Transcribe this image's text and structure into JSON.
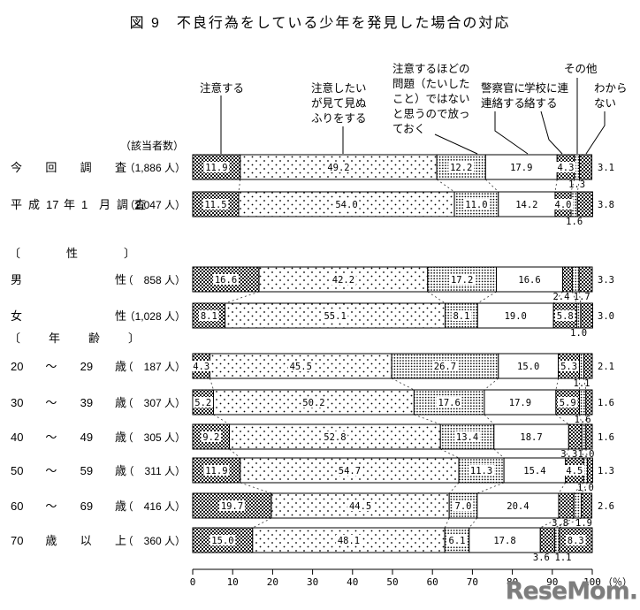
{
  "title": "図 9　不良行為をしている少年を発見した場合の対応",
  "watermark": "ReseMom.",
  "chart_data": {
    "type": "bar",
    "orientation": "horizontal",
    "stacked": true,
    "unit": "%",
    "axis": {
      "min": 0,
      "max": 100,
      "ticks": [
        0,
        10,
        20,
        30,
        40,
        50,
        60,
        70,
        80,
        90,
        100
      ],
      "unit_label": "（％）"
    },
    "respondents_header": "（該当者数）",
    "categories": [
      {
        "name": "注意する",
        "lines": [
          "注意する"
        ],
        "pattern": "checker"
      },
      {
        "name": "注意したいが見て見ぬふりをする",
        "lines": [
          "注意したい",
          "が見て見ぬ",
          "ふりをする"
        ],
        "pattern": "dots-sparse"
      },
      {
        "name": "注意するほどの問題（たいしたこと）ではないと思うので放っておく",
        "lines": [
          "注意するほどの",
          "問題（たいした",
          "こと）ではない",
          "と思うので放っ",
          "ておく"
        ],
        "pattern": "dots-dense"
      },
      {
        "name": "警察官に連絡する",
        "lines": [
          "警察官に",
          "連絡する"
        ],
        "pattern": "white"
      },
      {
        "name": "学校に連絡する",
        "lines": [
          "学校に連",
          "絡する"
        ],
        "pattern": "checker"
      },
      {
        "name": "その他",
        "lines": [
          "その他"
        ],
        "pattern": "dots-dense"
      },
      {
        "name": "わからない",
        "lines": [
          "わから",
          "ない"
        ],
        "pattern": "checker"
      }
    ],
    "groups": [
      {
        "header_tokens": null,
        "rows": [
          {
            "label_tokens": [
              "今",
              "回",
              "調",
              "査"
            ],
            "count": "（1,886 人）",
            "values": [
              "11.9",
              "49.2",
              "12.2",
              "17.9",
              "4.3",
              "1.3",
              "3.1"
            ]
          },
          {
            "label_tokens": [
              "平",
              "成",
              "17",
              "年",
              "1",
              "月",
              "調",
              "査"
            ],
            "count": "（2,047 人）",
            "values": [
              "11.5",
              "54.0",
              "11.0",
              "14.2",
              "4.0",
              "1.6",
              "3.8"
            ]
          }
        ]
      },
      {
        "header_tokens": [
          "〔",
          "性",
          "〕"
        ],
        "rows": [
          {
            "label_tokens": [
              "男",
              "性"
            ],
            "count": "（　858 人）",
            "values": [
              "16.6",
              "42.2",
              "17.2",
              "16.6",
              "2.4",
              "1.7",
              "3.3"
            ]
          },
          {
            "label_tokens": [
              "女",
              "性"
            ],
            "count": "（1,028 人）",
            "values": [
              "8.1",
              "55.1",
              "8.1",
              "19.0",
              "5.8",
              "1.0",
              "3.0"
            ]
          }
        ]
      },
      {
        "header_tokens": [
          "〔",
          "年",
          "齢",
          "〕"
        ],
        "rows": [
          {
            "label_tokens": [
              "20",
              "～",
              "29",
              "歳"
            ],
            "count": "（　187 人）",
            "values": [
              "4.3",
              "45.5",
              "26.7",
              "15.0",
              "5.3",
              "1.1",
              "2.1"
            ]
          },
          {
            "label_tokens": [
              "30",
              "～",
              "39",
              "歳"
            ],
            "count": "（　307 人）",
            "values": [
              "5.2",
              "50.2",
              "17.6",
              "17.9",
              "5.9",
              "1.6",
              "1.6"
            ]
          },
          {
            "label_tokens": [
              "40",
              "～",
              "49",
              "歳"
            ],
            "count": "（　305 人）",
            "values": [
              "9.2",
              "52.8",
              "13.4",
              "18.7",
              "3.3",
              "1.0",
              "1.6"
            ]
          },
          {
            "label_tokens": [
              "50",
              "～",
              "59",
              "歳"
            ],
            "count": "（　311 人）",
            "values": [
              "11.9",
              "54.7",
              "11.3",
              "15.4",
              "4.5",
              "1.0",
              "1.3"
            ]
          },
          {
            "label_tokens": [
              "60",
              "～",
              "69",
              "歳"
            ],
            "count": "（　416 人）",
            "values": [
              "19.7",
              "44.5",
              "7.0",
              "20.4",
              "3.8",
              "1.9",
              "2.6"
            ]
          },
          {
            "label_tokens": [
              "70",
              "歳",
              "以",
              "上"
            ],
            "count": "（　360 人）",
            "values": [
              "15.0",
              "48.1",
              "6.1",
              "17.8",
              "3.6",
              "1.1",
              "8.3"
            ]
          }
        ]
      }
    ],
    "colors": {
      "ink": "#000000",
      "background": "#ffffff",
      "watermark_gray": "#7d7d7d"
    }
  }
}
